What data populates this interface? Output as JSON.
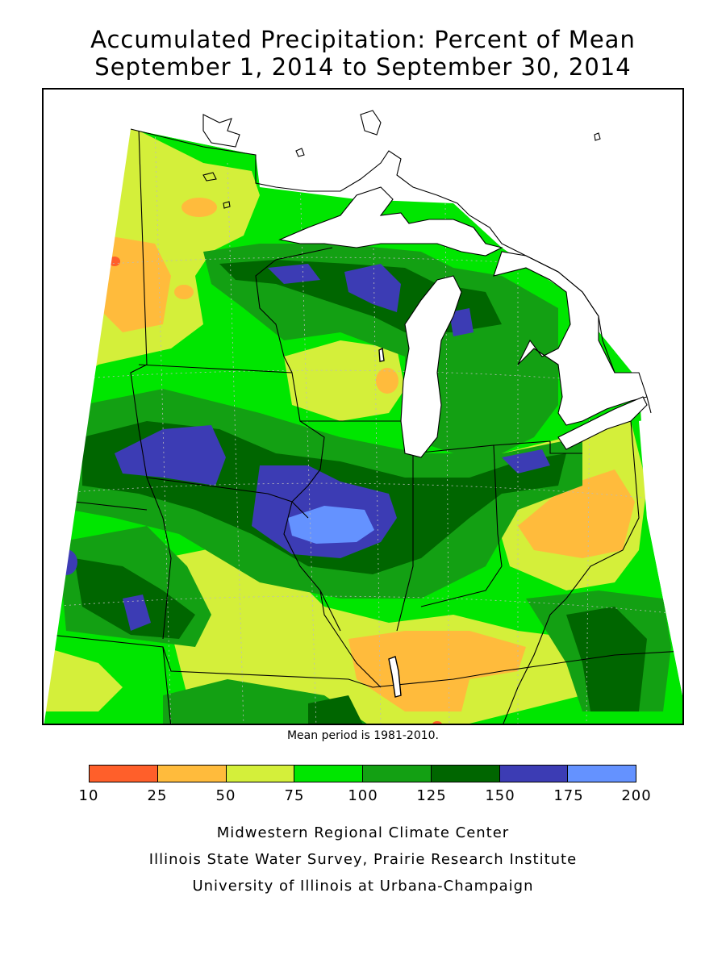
{
  "title_line1": "Accumulated Precipitation: Percent of Mean",
  "title_line2": "September 1, 2014 to September 30, 2014",
  "mean_note": "Mean period is 1981-2010.",
  "legend": {
    "ticks": [
      "10",
      "25",
      "50",
      "75",
      "100",
      "125",
      "150",
      "175",
      "200"
    ],
    "colors": [
      "#ff5f2a",
      "#ffbb3c",
      "#d4ef3a",
      "#00e600",
      "#13a013",
      "#006600",
      "#3c3cb4",
      "#6492ff"
    ]
  },
  "credits": [
    "Midwestern Regional Climate Center",
    "Illinois State Water Survey, Prairie Research Institute",
    "University of Illinois at Urbana-Champaign"
  ],
  "map_colors": {
    "c10_25": "#ff5f2a",
    "c25_50": "#ffbb3c",
    "c50_75": "#d4ef3a",
    "c75_100": "#00e600",
    "c100_125": "#13a013",
    "c125_150": "#006600",
    "c150_175": "#3c3cb4",
    "c175_200": "#6492ff",
    "water": "#ffffff"
  }
}
